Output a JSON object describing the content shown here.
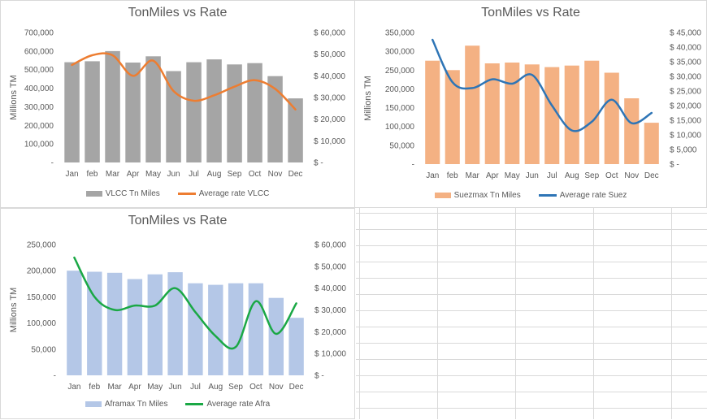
{
  "chart_data": [
    {
      "id": "vlcc",
      "type": "bar",
      "title": "TonMiles vs Rate",
      "ylabel": "Millions TM",
      "categories": [
        "Jan",
        "feb",
        "Mar",
        "Apr",
        "May",
        "Jun",
        "Jul",
        "Aug",
        "Sep",
        "Oct",
        "Nov",
        "Dec"
      ],
      "series": [
        {
          "name": "VLCC Tn Miles",
          "kind": "bar",
          "axis": "left",
          "color": "#a5a5a5",
          "values": [
            540000,
            545000,
            600000,
            538000,
            572000,
            492000,
            540000,
            555000,
            528000,
            535000,
            465000,
            345000
          ]
        },
        {
          "name": "Average rate VLCC",
          "kind": "line",
          "axis": "right",
          "color": "#ed7d31",
          "values": [
            45000,
            49500,
            49500,
            40000,
            47000,
            33000,
            28500,
            31000,
            35000,
            38000,
            34000,
            24500
          ]
        }
      ],
      "y_left": {
        "min": 0,
        "max": 700000,
        "step": 100000,
        "tick_labels": [
          "-",
          "100,000",
          "200,000",
          "300,000",
          "400,000",
          "500,000",
          "600,000",
          "700,000"
        ]
      },
      "y_right": {
        "min": 0,
        "max": 60000,
        "step": 10000,
        "tick_labels": [
          "$ -",
          "$ 10,000",
          "$ 20,000",
          "$ 30,000",
          "$ 40,000",
          "$ 50,000",
          "$ 60,000"
        ]
      },
      "legend": "bottom"
    },
    {
      "id": "suez",
      "type": "bar",
      "title": "TonMiles vs Rate",
      "ylabel": "Millions TM",
      "categories": [
        "Jan",
        "feb",
        "Mar",
        "Apr",
        "May",
        "Jun",
        "Jul",
        "Aug",
        "Sep",
        "Oct",
        "Nov",
        "Dec"
      ],
      "series": [
        {
          "name": "Suezmax Tn Miles",
          "kind": "bar",
          "axis": "left",
          "color": "#f4b183",
          "values": [
            275000,
            250000,
            315000,
            268000,
            270000,
            265000,
            258000,
            262000,
            275000,
            243000,
            175000,
            110000
          ]
        },
        {
          "name": "Average rate Suez",
          "kind": "line",
          "axis": "right",
          "color": "#2e75b6",
          "values": [
            42500,
            28000,
            26000,
            29000,
            27500,
            30500,
            20000,
            11500,
            14500,
            22000,
            14000,
            17500
          ]
        }
      ],
      "y_left": {
        "min": 0,
        "max": 350000,
        "step": 50000,
        "tick_labels": [
          "-",
          "50,000",
          "100,000",
          "150,000",
          "200,000",
          "250,000",
          "300,000",
          "350,000"
        ]
      },
      "y_right": {
        "min": 0,
        "max": 45000,
        "step": 5000,
        "tick_labels": [
          "$ -",
          "$ 5,000",
          "$ 10,000",
          "$ 15,000",
          "$ 20,000",
          "$ 25,000",
          "$ 30,000",
          "$ 35,000",
          "$ 40,000",
          "$ 45,000"
        ]
      },
      "legend": "bottom"
    },
    {
      "id": "afra",
      "type": "bar",
      "title": "TonMiles vs Rate",
      "ylabel": "Millions TM",
      "categories": [
        "Jan",
        "feb",
        "Mar",
        "Apr",
        "May",
        "Jun",
        "Jul",
        "Aug",
        "Sep",
        "Oct",
        "Nov",
        "Dec"
      ],
      "series": [
        {
          "name": "Aframax Tn Miles",
          "kind": "bar",
          "axis": "left",
          "color": "#b4c7e7",
          "values": [
            200000,
            198000,
            196000,
            184000,
            193000,
            197000,
            176000,
            173000,
            176000,
            176000,
            148000,
            110000
          ]
        },
        {
          "name": "Average rate Afra",
          "kind": "line",
          "axis": "right",
          "color": "#1aa845",
          "values": [
            54000,
            36000,
            30000,
            32000,
            32000,
            40000,
            29000,
            18000,
            13000,
            34000,
            19000,
            33000
          ]
        }
      ],
      "y_left": {
        "min": 0,
        "max": 250000,
        "step": 50000,
        "tick_labels": [
          "-",
          "50,000",
          "100,000",
          "150,000",
          "200,000",
          "250,000"
        ]
      },
      "y_right": {
        "min": 0,
        "max": 60000,
        "step": 10000,
        "tick_labels": [
          "$ -",
          "$ 10,000",
          "$ 20,000",
          "$ 30,000",
          "$ 40,000",
          "$ 50,000",
          "$ 60,000"
        ]
      },
      "legend": "bottom"
    }
  ]
}
